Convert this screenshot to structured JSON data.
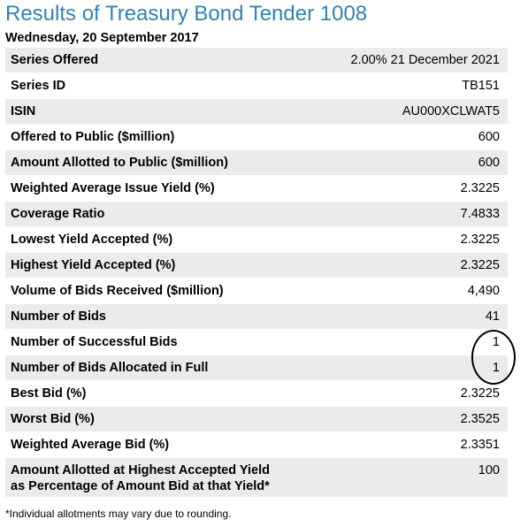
{
  "title": "Results of Treasury Bond Tender 1008",
  "date": "Wednesday, 20 September 2017",
  "rows": [
    {
      "label": "Series Offered",
      "value": "2.00% 21 December 2021"
    },
    {
      "label": "Series ID",
      "value": "TB151"
    },
    {
      "label": "ISIN",
      "value": "AU000XCLWAT5"
    },
    {
      "label": "Offered to Public ($million)",
      "value": "600"
    },
    {
      "label": "Amount Allotted to Public ($million)",
      "value": "600"
    },
    {
      "label": "Weighted Average Issue Yield (%)",
      "value": "2.3225"
    },
    {
      "label": "Coverage Ratio",
      "value": "7.4833"
    },
    {
      "label": "Lowest Yield Accepted (%)",
      "value": "2.3225"
    },
    {
      "label": "Highest Yield Accepted (%)",
      "value": "2.3225"
    },
    {
      "label": "Volume of Bids Received ($million)",
      "value": "4,490"
    },
    {
      "label": "Number of Bids",
      "value": "41"
    },
    {
      "label": "Number of Successful Bids",
      "value": "1"
    },
    {
      "label": "Number of Bids Allocated in Full",
      "value": "1"
    },
    {
      "label": "Best Bid (%)",
      "value": "2.3225"
    },
    {
      "label": "Worst Bid (%)",
      "value": "2.3525"
    },
    {
      "label": "Weighted Average Bid (%)",
      "value": "2.3351"
    },
    {
      "label_line1": "Amount Allotted at Highest Accepted Yield",
      "label_line2": "as Percentage of Amount Bid at that Yield*",
      "value": "100"
    }
  ],
  "footnote": "*Individual allotments may vary due to rounding."
}
